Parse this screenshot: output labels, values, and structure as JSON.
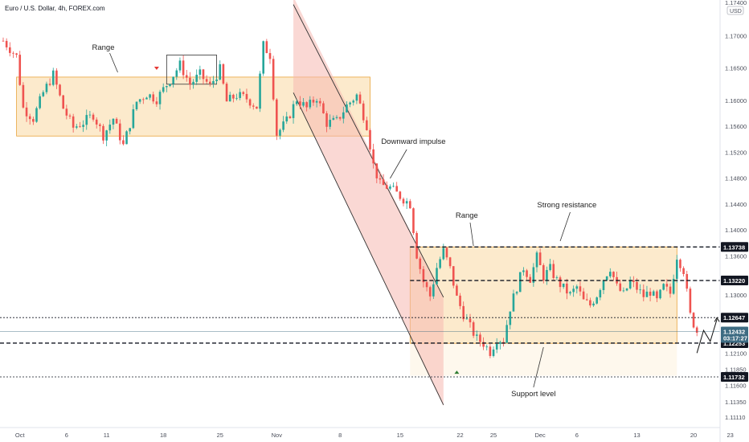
{
  "header": {
    "symbol_line": "Euro / U.S. Dollar, 4h, FOREX.com"
  },
  "axis_top": {
    "label_currency": "USD",
    "label_top_value": "1.17400"
  },
  "colors": {
    "up": "#26a69a",
    "down": "#ef5350",
    "range_zone": "#f6c36c",
    "channel": "#f5b8b0",
    "price_tag": "#3d6b82",
    "level_tag": "#131722"
  },
  "chart_data": {
    "type": "candlestick",
    "title": "Euro / U.S. Dollar, 4h, FOREX.com",
    "ylim": [
      1.1095,
      1.1755
    ],
    "y_ticks": [
      "1.17000",
      "1.16500",
      "1.16000",
      "1.15600",
      "1.15200",
      "1.14800",
      "1.14400",
      "1.14000",
      "1.13600",
      "1.13200",
      "1.13000",
      "1.12600",
      "1.12100",
      "1.11850",
      "1.11600",
      "1.11350",
      "1.11110"
    ],
    "x_ticks": [
      {
        "label": "Oct",
        "idx": 5
      },
      {
        "label": "6",
        "idx": 19
      },
      {
        "label": "11",
        "idx": 31
      },
      {
        "label": "18",
        "idx": 48
      },
      {
        "label": "25",
        "idx": 65
      },
      {
        "label": "Nov",
        "idx": 82
      },
      {
        "label": "8",
        "idx": 101
      },
      {
        "label": "15",
        "idx": 119
      },
      {
        "label": "22",
        "idx": 137
      },
      {
        "label": "25",
        "idx": 147
      },
      {
        "label": "Dec",
        "idx": 161
      },
      {
        "label": "6",
        "idx": 172
      },
      {
        "label": "13",
        "idx": 190
      },
      {
        "label": "20",
        "idx": 207
      },
      {
        "label": "23",
        "idx": 218
      }
    ],
    "close_path": [
      [
        0,
        1.1692
      ],
      [
        4,
        1.1668
      ],
      [
        6,
        1.1588
      ],
      [
        9,
        1.1572
      ],
      [
        12,
        1.1612
      ],
      [
        15,
        1.164
      ],
      [
        18,
        1.1588
      ],
      [
        21,
        1.1558
      ],
      [
        24,
        1.1566
      ],
      [
        27,
        1.1578
      ],
      [
        30,
        1.1546
      ],
      [
        33,
        1.1572
      ],
      [
        36,
        1.153
      ],
      [
        40,
        1.1598
      ],
      [
        43,
        1.161
      ],
      [
        46,
        1.1602
      ],
      [
        50,
        1.1632
      ],
      [
        53,
        1.1655
      ],
      [
        56,
        1.1625
      ],
      [
        59,
        1.164
      ],
      [
        62,
        1.1622
      ],
      [
        65,
        1.1648
      ],
      [
        67,
        1.1598
      ],
      [
        70,
        1.1608
      ],
      [
        73,
        1.1603
      ],
      [
        76,
        1.159
      ],
      [
        78,
        1.1685
      ],
      [
        80,
        1.167
      ],
      [
        82,
        1.1548
      ],
      [
        85,
        1.1568
      ],
      [
        88,
        1.1602
      ],
      [
        91,
        1.1588
      ],
      [
        94,
        1.1605
      ],
      [
        97,
        1.1565
      ],
      [
        100,
        1.1568
      ],
      [
        103,
        1.1592
      ],
      [
        106,
        1.1608
      ],
      [
        109,
        1.1562
      ],
      [
        111,
        1.15
      ],
      [
        113,
        1.147
      ],
      [
        116,
        1.1465
      ],
      [
        119,
        1.1452
      ],
      [
        122,
        1.144
      ],
      [
        124,
        1.1362
      ],
      [
        126,
        1.132
      ],
      [
        128,
        1.1298
      ],
      [
        130,
        1.1342
      ],
      [
        132,
        1.1368
      ],
      [
        134,
        1.134
      ],
      [
        136,
        1.1295
      ],
      [
        138,
        1.127
      ],
      [
        140,
        1.125
      ],
      [
        142,
        1.1232
      ],
      [
        144,
        1.1225
      ],
      [
        146,
        1.1212
      ],
      [
        148,
        1.1232
      ],
      [
        150,
        1.123
      ],
      [
        152,
        1.128
      ],
      [
        154,
        1.1312
      ],
      [
        156,
        1.1342
      ],
      [
        158,
        1.1325
      ],
      [
        160,
        1.1358
      ],
      [
        162,
        1.1328
      ],
      [
        164,
        1.134
      ],
      [
        166,
        1.1322
      ],
      [
        168,
        1.131
      ],
      [
        170,
        1.13
      ],
      [
        172,
        1.1312
      ],
      [
        174,
        1.129
      ],
      [
        176,
        1.1284
      ],
      [
        178,
        1.13
      ],
      [
        180,
        1.1325
      ],
      [
        182,
        1.1342
      ],
      [
        184,
        1.1312
      ],
      [
        186,
        1.13
      ],
      [
        188,
        1.132
      ],
      [
        190,
        1.131
      ],
      [
        192,
        1.1298
      ],
      [
        194,
        1.1305
      ],
      [
        196,
        1.129
      ],
      [
        198,
        1.1312
      ],
      [
        200,
        1.1302
      ],
      [
        202,
        1.136
      ],
      [
        204,
        1.1338
      ],
      [
        206,
        1.1268
      ],
      [
        208,
        1.1243
      ]
    ],
    "levels": [
      {
        "value": "1.13738",
        "y": 1.13738,
        "style": "dashed-bold"
      },
      {
        "value": "1.13220",
        "y": 1.1322,
        "style": "dashed-bold"
      },
      {
        "value": "1.12647",
        "y": 1.12647,
        "style": "dotted"
      },
      {
        "value": "1.12253",
        "y": 1.12253,
        "style": "dashed-bold"
      },
      {
        "value": "1.11732",
        "y": 1.11732,
        "style": "dotted"
      }
    ],
    "current_price": {
      "value": "1.12432",
      "countdown": "03:17:27"
    },
    "annotations": [
      "Range",
      "Downward impulse",
      "Range",
      "Strong resistance",
      "Support level"
    ]
  }
}
